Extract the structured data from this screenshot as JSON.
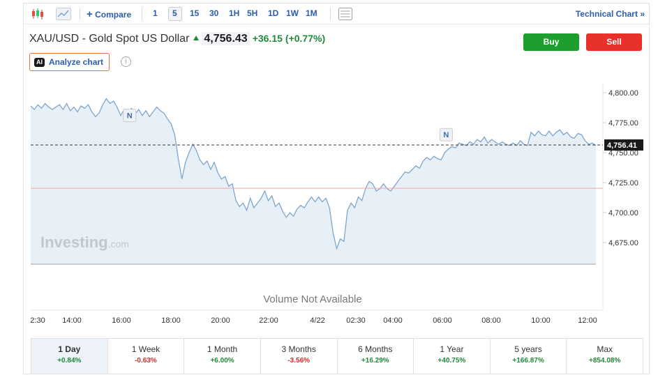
{
  "toolbar": {
    "compare_label": "Compare",
    "intervals": [
      "1",
      "5",
      "15",
      "30",
      "1H",
      "5H",
      "1D",
      "1W",
      "1M"
    ],
    "active_interval": "5",
    "technical_chart_label": "Technical Chart",
    "icons": [
      "candlestick-icon",
      "area-chart-icon",
      "plus-icon",
      "table-icon",
      "double-chevron-icon"
    ]
  },
  "instrument": {
    "title": "XAU/USD - Gold Spot US Dollar",
    "price": "4,756.43",
    "change": "+36.15",
    "change_pct": "(+0.77%)"
  },
  "actions": {
    "buy_label": "Buy",
    "sell_label": "Sell"
  },
  "analyze": {
    "badge": "AI",
    "label": "Analyze chart",
    "info_glyph": "i"
  },
  "colors": {
    "up": "#1f8a3c",
    "down": "#d62a2a",
    "line": "#7ea6cc",
    "area": "#e3ecf6",
    "buy": "#1c9f2e",
    "sell": "#e8312a"
  },
  "chart_data": {
    "type": "area",
    "x_ticks": [
      "2:30",
      "14:00",
      "16:00",
      "18:00",
      "20:00",
      "22:00",
      "4/22",
      "02:30",
      "04:00",
      "06:00",
      "08:00",
      "10:00",
      "12:00"
    ],
    "y_ticks": [
      "4,800.00",
      "4,775.00",
      "4,750.00",
      "4,725.00",
      "4,700.00",
      "4,675.00"
    ],
    "ylim": [
      4660,
      4810
    ],
    "current_value_label": "4,756.41",
    "current_value": 4756.41,
    "previous_close": 4720.3,
    "news_markers": [
      {
        "label": "N",
        "x": 0.175,
        "value": 4781
      },
      {
        "label": "N",
        "x": 0.735,
        "value": 4765
      }
    ],
    "watermark": "Investing",
    "watermark_suffix": ".com",
    "volume_note": "Volume Not Available",
    "series": [
      {
        "values": [
          4789,
          4786,
          4790,
          4787,
          4791,
          4788,
          4786,
          4788,
          4790,
          4786,
          4791,
          4785,
          4788,
          4784,
          4789,
          4787,
          4790,
          4784,
          4780,
          4783,
          4790,
          4795,
          4791,
          4793,
          4788,
          4781,
          4786,
          4783,
          4787,
          4782,
          4786,
          4781,
          4785,
          4780,
          4784,
          4788,
          4785,
          4783,
          4778,
          4774,
          4765,
          4745,
          4728,
          4742,
          4750,
          4757,
          4752,
          4744,
          4740,
          4743,
          4736,
          4742,
          4733,
          4728,
          4730,
          4722,
          4724,
          4710,
          4705,
          4708,
          4702,
          4712,
          4704,
          4708,
          4712,
          4718,
          4710,
          4714,
          4705,
          4708,
          4701,
          4696,
          4700,
          4697,
          4703,
          4706,
          4704,
          4709,
          4713,
          4709,
          4713,
          4709,
          4712,
          4704,
          4683,
          4670,
          4678,
          4676,
          4702,
          4708,
          4704,
          4713,
          4710,
          4720,
          4726,
          4724,
          4718,
          4720,
          4724,
          4720,
          4718,
          4722,
          4726,
          4730,
          4734,
          4733,
          4736,
          4739,
          4737,
          4743,
          4746,
          4744,
          4747,
          4745,
          4744,
          4750,
          4753,
          4755,
          4754,
          4758,
          4757,
          4756,
          4759,
          4757,
          4761,
          4759,
          4763,
          4758,
          4761,
          4759,
          4757,
          4759,
          4757,
          4756,
          4758,
          4756,
          4760,
          4757,
          4756,
          4767,
          4764,
          4768,
          4765,
          4764,
          4768,
          4764,
          4767,
          4769,
          4765,
          4767,
          4763,
          4762,
          4766,
          4765,
          4760,
          4757,
          4758,
          4756
        ]
      }
    ]
  },
  "periods": [
    {
      "label": "1 Day",
      "value": "+0.84%",
      "dir": "pos",
      "active": true
    },
    {
      "label": "1 Week",
      "value": "-0.63%",
      "dir": "neg",
      "active": false
    },
    {
      "label": "1 Month",
      "value": "+6.00%",
      "dir": "pos",
      "active": false
    },
    {
      "label": "3 Months",
      "value": "-3.56%",
      "dir": "neg",
      "active": false
    },
    {
      "label": "6 Months",
      "value": "+16.29%",
      "dir": "pos",
      "active": false
    },
    {
      "label": "1 Year",
      "value": "+40.75%",
      "dir": "pos",
      "active": false
    },
    {
      "label": "5 years",
      "value": "+166.87%",
      "dir": "pos",
      "active": false
    },
    {
      "label": "Max",
      "value": "+854.08%",
      "dir": "pos",
      "active": false
    }
  ]
}
